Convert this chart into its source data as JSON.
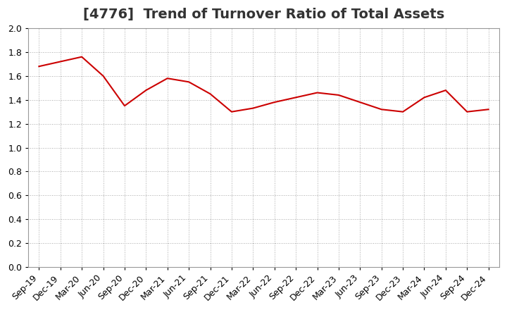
{
  "title": "[4776]  Trend of Turnover Ratio of Total Assets",
  "ylim": [
    0.0,
    2.0
  ],
  "yticks": [
    0.0,
    0.2,
    0.4,
    0.6,
    0.8,
    1.0,
    1.2,
    1.4,
    1.6,
    1.8,
    2.0
  ],
  "line_color": "#cc0000",
  "bg_color": "#ffffff",
  "grid_color": "#aaaaaa",
  "title_color": "#333333",
  "labels": [
    "Sep-19",
    "Dec-19",
    "Mar-20",
    "Jun-20",
    "Sep-20",
    "Dec-20",
    "Mar-21",
    "Jun-21",
    "Sep-21",
    "Dec-21",
    "Mar-22",
    "Jun-22",
    "Sep-22",
    "Dec-22",
    "Mar-23",
    "Jun-23",
    "Sep-23",
    "Dec-23",
    "Mar-24",
    "Jun-24",
    "Sep-24",
    "Dec-24"
  ],
  "values": [
    1.68,
    1.72,
    1.76,
    1.6,
    1.35,
    1.48,
    1.58,
    1.55,
    1.45,
    1.3,
    1.33,
    1.38,
    1.42,
    1.46,
    1.44,
    1.38,
    1.32,
    1.3,
    1.42,
    1.48,
    1.3,
    1.32
  ],
  "title_fontsize": 14,
  "tick_fontsize": 9
}
